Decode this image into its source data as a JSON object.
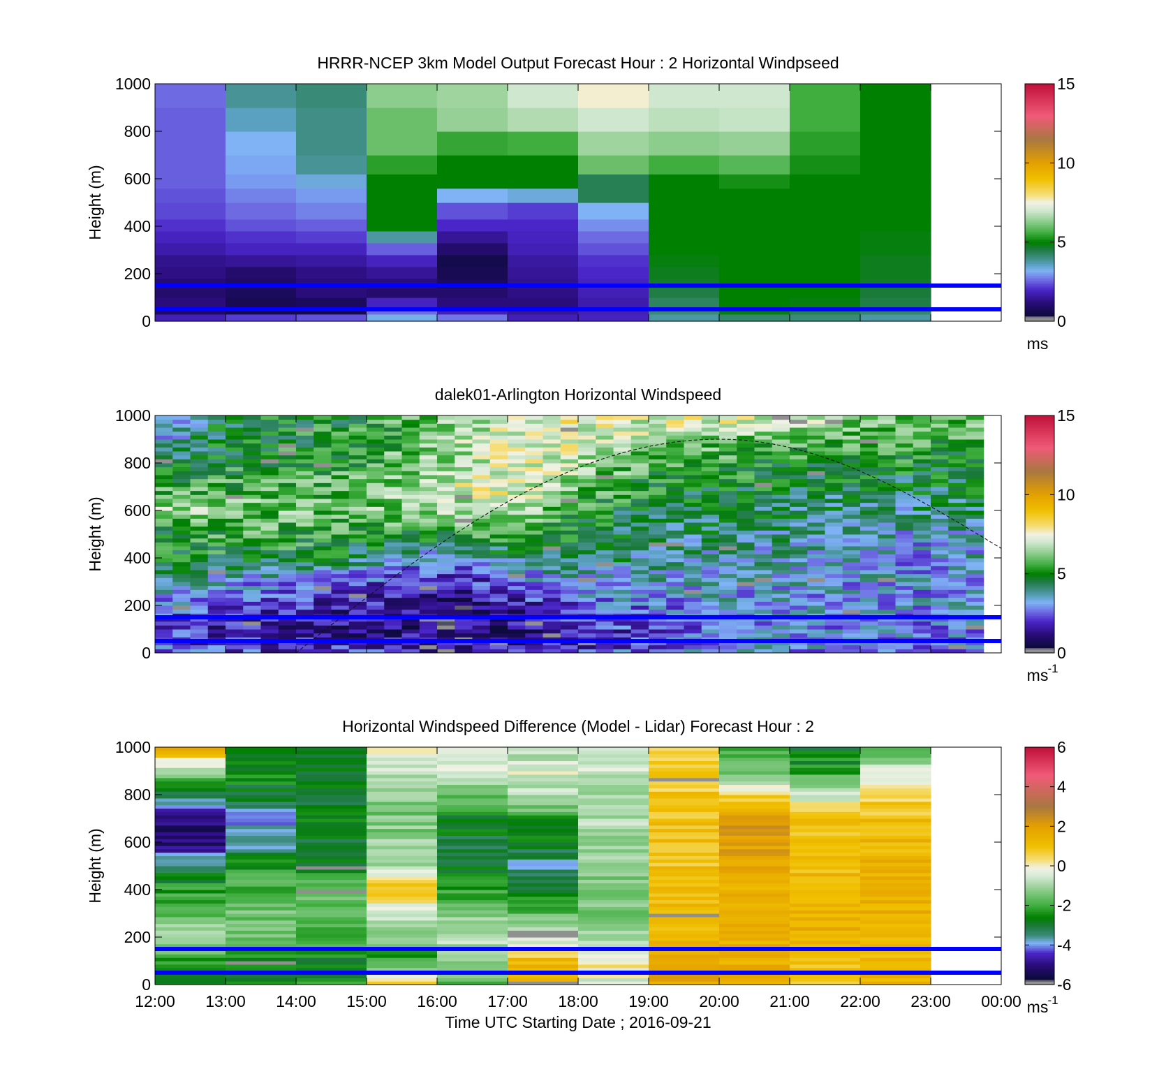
{
  "chart_data": [
    {
      "type": "heatmap",
      "title": "HRRR-NCEP 3km Model Output   Forecast Hour : 2 Horizontal Windpseed",
      "ylabel": "Height (m)",
      "ylim": [
        0,
        1000
      ],
      "yticks": [
        "0",
        "200",
        "400",
        "600",
        "800",
        "1000"
      ],
      "xlim": [
        "12:00",
        "00:00"
      ],
      "colorbar": {
        "range": [
          0,
          15
        ],
        "ticks": [
          "0",
          "5",
          "10",
          "15"
        ],
        "unit_label": "ms",
        "unit_superscript": ""
      },
      "reference_lines_m": [
        150,
        50
      ],
      "hours_with_data": 11,
      "heights_m": [
        0,
        30,
        60,
        100,
        140,
        180,
        230,
        280,
        330,
        380,
        430,
        500,
        560,
        620,
        700,
        800,
        900,
        1000
      ],
      "columns": [
        [
          1.8,
          0.9,
          1.2,
          1.0,
          1.1,
          1.3,
          1.4,
          1.7,
          1.9,
          2.1,
          2.3,
          2.4,
          2.5,
          2.5,
          2.5,
          2.5,
          2.6
        ],
        [
          2.2,
          0.6,
          0.7,
          0.8,
          0.9,
          1.0,
          1.5,
          1.9,
          2.1,
          2.4,
          2.6,
          2.8,
          3.0,
          3.1,
          3.2,
          3.6,
          3.9
        ],
        [
          2.4,
          0.6,
          0.8,
          1.2,
          1.2,
          1.3,
          1.6,
          1.9,
          2.2,
          2.5,
          2.8,
          3.0,
          3.4,
          3.9,
          4.0,
          4.0,
          4.1
        ],
        [
          3.3,
          2.6,
          1.9,
          1.0,
          1.2,
          1.5,
          1.9,
          2.5,
          3.8,
          5.0,
          5.0,
          5.0,
          5.0,
          5.4,
          6.0,
          6.0,
          6.3
        ],
        [
          2.7,
          1.8,
          1.2,
          1.0,
          0.8,
          0.7,
          0.6,
          1.0,
          1.5,
          2.0,
          2.4,
          3.2,
          5.0,
          5.0,
          5.5,
          6.4,
          6.5
        ],
        [
          1.8,
          1.5,
          1.2,
          1.3,
          1.4,
          1.5,
          1.6,
          1.8,
          1.9,
          2.0,
          2.2,
          3.4,
          5.0,
          5.0,
          5.6,
          6.7,
          7.0
        ],
        [
          1.9,
          1.8,
          1.7,
          1.8,
          1.9,
          2.0,
          2.1,
          2.4,
          2.6,
          2.9,
          3.2,
          4.4,
          4.4,
          6.0,
          6.5,
          7.0,
          7.6
        ],
        [
          3.8,
          4.1,
          4.3,
          4.5,
          4.7,
          4.8,
          4.9,
          5.0,
          5.0,
          5.0,
          5.0,
          5.0,
          5.0,
          5.6,
          6.3,
          6.8,
          7.0
        ],
        [
          4.2,
          4.9,
          5.0,
          5.0,
          5.0,
          5.0,
          5.0,
          5.0,
          5.0,
          5.0,
          5.0,
          5.0,
          5.2,
          5.8,
          6.4,
          6.9,
          7.0
        ],
        [
          4.1,
          4.4,
          4.9,
          5.0,
          5.0,
          5.0,
          5.0,
          5.0,
          5.0,
          5.0,
          5.0,
          5.0,
          5.0,
          5.2,
          5.4,
          5.6,
          5.6
        ],
        [
          3.8,
          4.2,
          4.5,
          4.6,
          4.7,
          4.8,
          4.8,
          4.9,
          4.9,
          5.0,
          5.0,
          5.0,
          5.0,
          5.0,
          5.0,
          5.0,
          5.0
        ]
      ]
    },
    {
      "type": "heatmap",
      "title": "dalek01-Arlington  Horizontal Windspeed",
      "ylabel": "Height (m)",
      "ylim": [
        0,
        1000
      ],
      "yticks": [
        "0",
        "200",
        "400",
        "600",
        "800",
        "1000"
      ],
      "xlim": [
        "12:00",
        "00:00"
      ],
      "colorbar": {
        "range": [
          0,
          15
        ],
        "ticks": [
          "0",
          "5",
          "10",
          "15"
        ],
        "unit_label": "ms",
        "unit_superscript": "-1"
      },
      "reference_lines_m": [
        150,
        50
      ],
      "columns_per_hour": 4,
      "total_columns": 47,
      "profile_heights_m": [
        0,
        100,
        200,
        300,
        400,
        500,
        600,
        700,
        800,
        900,
        1000
      ],
      "profile_hours": [
        12,
        13,
        14,
        15,
        16,
        17,
        18,
        19,
        20,
        21,
        22,
        23,
        24
      ],
      "profiles": [
        [
          2.5,
          2.2,
          3.0,
          3.8,
          4.8,
          5.0,
          6.6,
          5.5,
          4.6,
          2.8,
          2.6
        ],
        [
          2.3,
          1.6,
          2.2,
          3.2,
          5.0,
          5.4,
          6.2,
          5.6,
          5.0,
          4.8,
          4.6
        ],
        [
          2.2,
          1.6,
          2.0,
          3.0,
          4.8,
          5.6,
          6.0,
          5.6,
          5.2,
          5.0,
          4.8
        ],
        [
          2.1,
          1.3,
          1.6,
          2.4,
          4.2,
          5.4,
          6.1,
          6.0,
          5.6,
          5.4,
          5.2
        ],
        [
          2.0,
          1.0,
          1.1,
          1.6,
          2.8,
          5.0,
          6.6,
          6.9,
          6.5,
          6.1,
          5.8
        ],
        [
          1.8,
          1.2,
          1.6,
          2.4,
          4.0,
          5.6,
          6.8,
          7.5,
          7.4,
          7.2,
          7.4
        ],
        [
          2.1,
          1.8,
          2.4,
          3.4,
          4.4,
          5.0,
          5.4,
          6.2,
          6.8,
          7.2,
          7.6
        ],
        [
          2.6,
          2.3,
          2.8,
          3.4,
          3.8,
          4.2,
          4.5,
          5.0,
          5.6,
          6.4,
          7.4
        ],
        [
          3.1,
          3.0,
          3.2,
          3.4,
          3.6,
          4.0,
          4.4,
          4.8,
          5.3,
          6.0,
          7.6
        ],
        [
          3.0,
          3.0,
          3.2,
          3.3,
          3.5,
          3.9,
          4.3,
          4.7,
          5.2,
          6.0,
          7.0
        ],
        [
          2.8,
          2.9,
          3.1,
          3.2,
          3.3,
          3.6,
          3.9,
          4.4,
          5.1,
          5.8,
          6.4
        ],
        [
          2.8,
          2.9,
          3.0,
          3.0,
          3.0,
          3.4,
          3.8,
          4.4,
          5.0,
          5.6,
          6.2
        ],
        [
          3.0,
          3.2,
          3.4,
          3.4,
          3.5,
          3.8,
          4.2,
          4.6,
          5.0,
          5.4,
          5.8
        ]
      ],
      "boundary_layer_curve": {
        "start_hour": 14.0,
        "peak_hour": 20.0,
        "end_hour": 24.0,
        "peak_m": 900,
        "end_m": 440
      }
    },
    {
      "type": "heatmap",
      "title": "Horizontal Windspeed Difference (Model - Lidar) Forecast Hour : 2",
      "ylabel": "Height (m)",
      "xlabel": "Time UTC  Starting Date ; 2016-09-21",
      "ylim": [
        0,
        1000
      ],
      "yticks": [
        "0",
        "200",
        "400",
        "600",
        "800",
        "1000"
      ],
      "xticks": [
        "12:00",
        "13:00",
        "14:00",
        "15:00",
        "16:00",
        "17:00",
        "18:00",
        "19:00",
        "20:00",
        "21:00",
        "22:00",
        "23:00",
        "00:00"
      ],
      "colorbar": {
        "range": [
          -6,
          6
        ],
        "ticks": [
          "-6",
          "-4",
          "-2",
          "0",
          "2",
          "4",
          "6"
        ],
        "unit_label": "ms",
        "unit_superscript": "-1"
      },
      "reference_lines_m": [
        150,
        50
      ],
      "hours_with_data": 11,
      "profile_heights_m": [
        0,
        100,
        200,
        300,
        400,
        500,
        600,
        700,
        800,
        900,
        1000
      ],
      "profiles": [
        [
          -2.6,
          -2.2,
          -1.0,
          -1.6,
          -2.2,
          -3.2,
          -5.2,
          -5.0,
          -3.2,
          -1.0,
          1.5
        ],
        [
          -2.6,
          -2.4,
          -1.6,
          -1.4,
          -1.8,
          -2.4,
          -3.8,
          -4.0,
          -2.8,
          -2.5,
          -2.5
        ],
        [
          -2.4,
          -2.6,
          -1.8,
          -1.6,
          -1.8,
          -2.6,
          -2.8,
          -2.8,
          -2.7,
          -2.7,
          -2.8
        ],
        [
          1.0,
          -2.4,
          -1.0,
          -0.6,
          1.0,
          -0.8,
          -1.2,
          -1.4,
          -1.2,
          -0.6,
          -0.3
        ],
        [
          -1.8,
          -1.2,
          -0.8,
          -1.4,
          -2.2,
          -2.8,
          -3.0,
          -2.6,
          -1.6,
          -0.6,
          0.0
        ],
        [
          1.5,
          1.2,
          -0.8,
          -1.6,
          -2.6,
          -3.6,
          -2.8,
          -2.2,
          -0.8,
          -0.3,
          -1.0
        ],
        [
          -0.4,
          0.2,
          -1.2,
          -1.4,
          -1.4,
          -1.2,
          -1.0,
          -0.9,
          -0.8,
          -0.6,
          -0.4
        ],
        [
          1.8,
          1.6,
          1.4,
          1.2,
          1.1,
          1.0,
          1.1,
          1.0,
          0.8,
          0.6,
          0.8
        ],
        [
          1.4,
          1.5,
          1.6,
          1.6,
          1.6,
          1.8,
          2.0,
          2.2,
          0.5,
          -1.5,
          -1.8
        ],
        [
          0.6,
          1.2,
          1.4,
          1.4,
          1.3,
          1.2,
          1.0,
          0.8,
          -0.6,
          -2.2,
          -2.8
        ],
        [
          1.5,
          1.2,
          1.3,
          1.4,
          1.5,
          1.5,
          1.3,
          1.0,
          0.6,
          -0.4,
          -2.0
        ]
      ]
    }
  ]
}
